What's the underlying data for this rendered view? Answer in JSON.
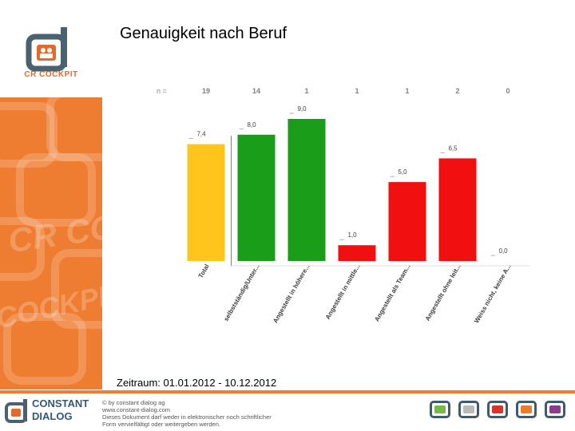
{
  "header": {
    "title": "Genauigkeit nach Beruf"
  },
  "logo": {
    "text": "CR COCKPIT"
  },
  "sidebar_watermark": {
    "words": [
      "CR COC",
      "COCKPIT"
    ]
  },
  "footer": {
    "date_range": "Zeitraum: 01.01.2012 - 10.12.2012",
    "brand_line1": "CONSTANT",
    "brand_line2": "DIALOG",
    "copyright_lines": [
      "© by constant dialog ag",
      "www.constant-dialog.com",
      "Dieses Dokument darf weder in elektronischer noch schriftlicher",
      "Form vervielfältigt oder weitergeben werden."
    ],
    "products": [
      {
        "name": "dialog-product-1",
        "color": "#7ab648"
      },
      {
        "name": "dialog-product-2",
        "color": "#b9b9b9"
      },
      {
        "name": "dialog-product-3",
        "color": "#d9342b"
      },
      {
        "name": "dialog-product-4",
        "color": "#e87d2c"
      },
      {
        "name": "dialog-product-5",
        "color": "#8a3d8f"
      }
    ]
  },
  "chart_data": {
    "type": "bar",
    "n_label": "n =",
    "categories": [
      "Total",
      "selbstständig/Unter...",
      "Angestellt in höhere...",
      "Angestellt in mittle...",
      "Angestellt als Team...",
      "Angestellt ohne leit...",
      "Weiss nicht, keine A..."
    ],
    "n_values": [
      "19",
      "14",
      "1",
      "1",
      "1",
      "2",
      "0"
    ],
    "values": [
      7.4,
      8.0,
      9.0,
      1.0,
      5.0,
      6.5,
      0.0
    ],
    "value_labels": [
      "7,4",
      "8,0",
      "9,0",
      "1,0",
      "5,0",
      "6,5",
      "0,0"
    ],
    "colors": [
      "#ffc51a",
      "#1a9e1a",
      "#1a9e1a",
      "#f01010",
      "#f01010",
      "#f01010",
      "#f01010"
    ],
    "ylim": [
      0,
      9
    ],
    "grid": false,
    "legend": "none"
  }
}
